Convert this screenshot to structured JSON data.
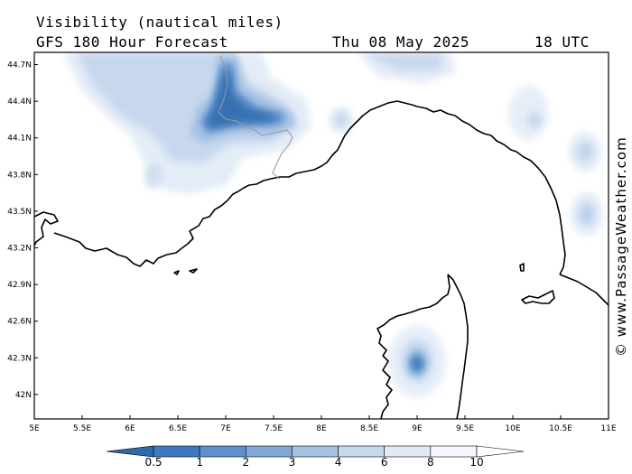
{
  "header": {
    "title": "Visibility (nautical miles)",
    "model": "GFS 180 Hour Forecast",
    "date": "Thu 08 May 2025",
    "time": "18 UTC"
  },
  "credit": "© www.PassageWeather.com",
  "map": {
    "lon_range": [
      5,
      11
    ],
    "lat_range": [
      41.8,
      44.8
    ],
    "lon_ticks": [
      "5E",
      "5.5E",
      "6E",
      "6.5E",
      "7E",
      "7.5E",
      "8E",
      "8.5E",
      "9E",
      "9.5E",
      "10E",
      "10.5E",
      "11E"
    ],
    "lat_ticks": [
      "44.7N",
      "44.4N",
      "44.1N",
      "43.8N",
      "43.5N",
      "43.2N",
      "42.9N",
      "42.6N",
      "42.3N",
      "42N"
    ]
  },
  "colorbar": {
    "labels": [
      "0.5",
      "1",
      "2",
      "3",
      "4",
      "6",
      "8",
      "10"
    ],
    "colors": [
      "#2f6aad",
      "#3f79bd",
      "#5d90cc",
      "#7fa8d6",
      "#a6c2e3",
      "#c6d8ee",
      "#e0eaf6",
      "#f4f8fc",
      "#ffffff"
    ]
  }
}
